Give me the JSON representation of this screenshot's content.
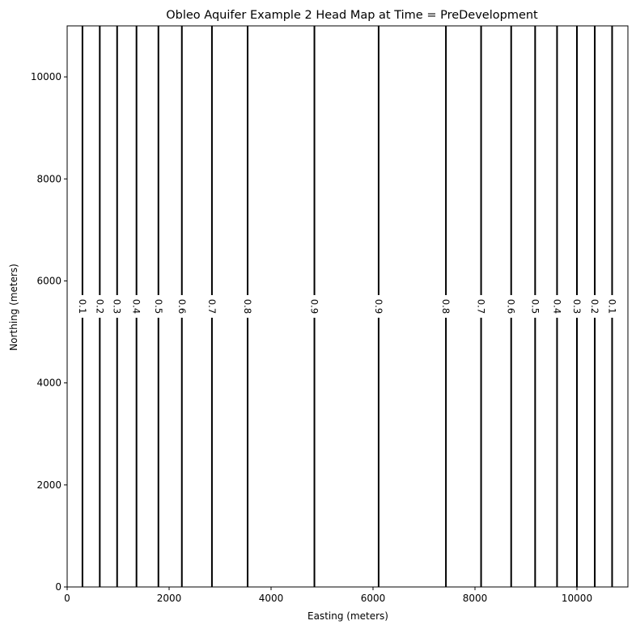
{
  "chart_data": {
    "type": "contour",
    "title": "Obleo Aquifer Example 2 Head Map at Time = PreDevelopment",
    "xlabel": "Easting (meters)",
    "ylabel": "Northing (meters)",
    "xlim": [
      0,
      11000
    ],
    "ylim": [
      0,
      11000
    ],
    "xticks": [
      0,
      2000,
      4000,
      6000,
      8000,
      10000
    ],
    "yticks": [
      0,
      2000,
      4000,
      6000,
      8000,
      10000
    ],
    "grid": false,
    "line_color": "#000000",
    "label_y": 5500,
    "contours": [
      {
        "x": 300,
        "label": "0.1"
      },
      {
        "x": 640,
        "label": "0.2"
      },
      {
        "x": 980,
        "label": "0.3"
      },
      {
        "x": 1360,
        "label": "0.4"
      },
      {
        "x": 1790,
        "label": "0.5"
      },
      {
        "x": 2250,
        "label": "0.6"
      },
      {
        "x": 2840,
        "label": "0.7"
      },
      {
        "x": 3540,
        "label": "0.8"
      },
      {
        "x": 4850,
        "label": "0.9"
      },
      {
        "x": 6110,
        "label": "0.9"
      },
      {
        "x": 7430,
        "label": "0.8"
      },
      {
        "x": 8120,
        "label": "0.7"
      },
      {
        "x": 8710,
        "label": "0.6"
      },
      {
        "x": 9180,
        "label": "0.5"
      },
      {
        "x": 9610,
        "label": "0.4"
      },
      {
        "x": 10000,
        "label": "0.3"
      },
      {
        "x": 10350,
        "label": "0.2"
      },
      {
        "x": 10690,
        "label": "0.1"
      }
    ]
  }
}
